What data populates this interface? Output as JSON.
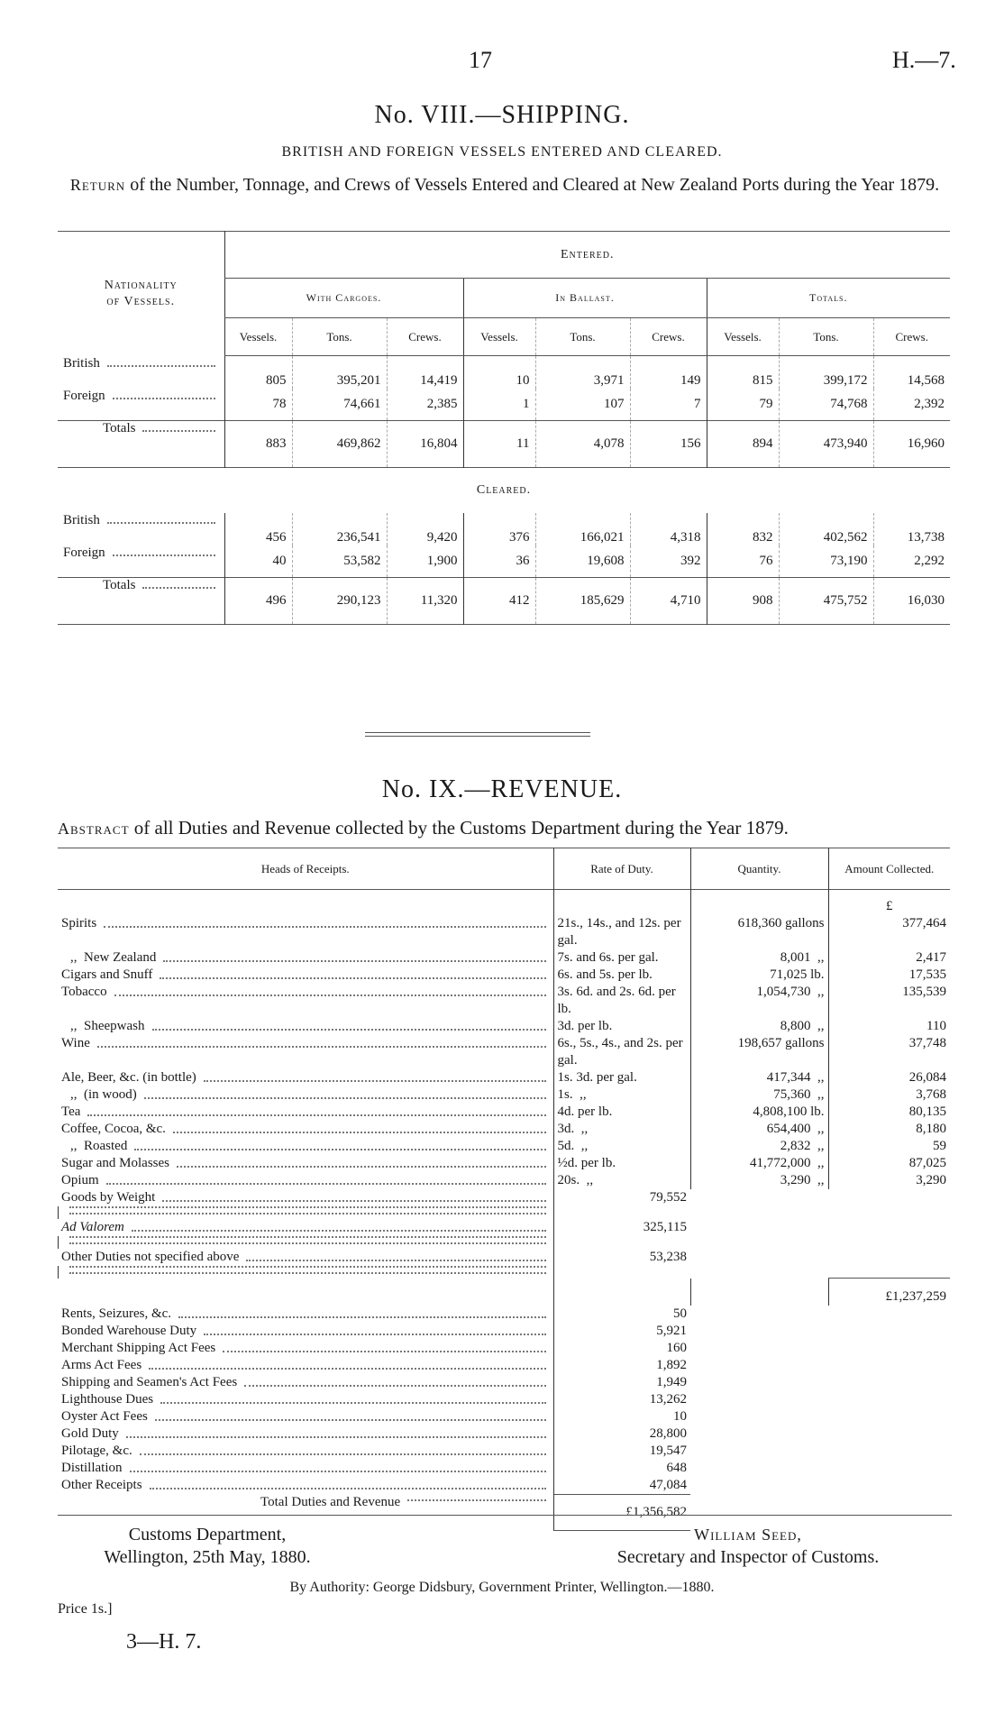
{
  "header": {
    "page": "17",
    "ref": "H.—7."
  },
  "shipping": {
    "title": "No. VIII.—SHIPPING.",
    "subtitle": "BRITISH AND FOREIGN VESSELS ENTERED AND CLEARED.",
    "caption_lead": "Return",
    "caption": "of the Number, Tonnage, and Crews of Vessels Entered and Cleared at New Zealand Ports during the Year 1879.",
    "columns": {
      "nationality": "Nationality of Vessels.",
      "groups": [
        "With Cargoes.",
        "In Ballast.",
        "Totals."
      ],
      "fields": [
        "Vessels.",
        "Tons.",
        "Crews."
      ]
    },
    "entered": {
      "label": "Entered.",
      "rows": [
        {
          "name": "British",
          "values": [
            "805",
            "395,201",
            "14,419",
            "10",
            "3,971",
            "149",
            "815",
            "399,172",
            "14,568"
          ]
        },
        {
          "name": "Foreign",
          "values": [
            "78",
            "74,661",
            "2,385",
            "1",
            "107",
            "7",
            "79",
            "74,768",
            "2,392"
          ]
        },
        {
          "name": "Totals",
          "values": [
            "883",
            "469,862",
            "16,804",
            "11",
            "4,078",
            "156",
            "894",
            "473,940",
            "16,960"
          ]
        }
      ]
    },
    "cleared": {
      "label": "Cleared.",
      "rows": [
        {
          "name": "British",
          "values": [
            "456",
            "236,541",
            "9,420",
            "376",
            "166,021",
            "4,318",
            "832",
            "402,562",
            "13,738"
          ]
        },
        {
          "name": "Foreign",
          "values": [
            "40",
            "53,582",
            "1,900",
            "36",
            "19,608",
            "392",
            "76",
            "73,190",
            "2,292"
          ]
        },
        {
          "name": "Totals",
          "values": [
            "496",
            "290,123",
            "11,320",
            "412",
            "185,629",
            "4,710",
            "908",
            "475,752",
            "16,030"
          ]
        }
      ]
    }
  },
  "revenue": {
    "title": "No. IX.—REVENUE.",
    "caption_lead": "Abstract",
    "caption": "of all Duties and Revenue collected by the Customs Department during the Year 1879.",
    "columns": [
      "Heads of Receipts.",
      "Rate of Duty.",
      "Quantity.",
      "Amount Collected."
    ],
    "currency": "£",
    "duties": [
      {
        "head": "Spirits",
        "rate": "21s., 14s., and 12s. per gal.",
        "quantity": "618,360 gallons",
        "amount": "377,464"
      },
      {
        "head": ",,  New Zealand",
        "rate": "7s. and 6s. per gal.",
        "quantity": "8,001  ,,",
        "amount": "2,417"
      },
      {
        "head": "Cigars and Snuff",
        "rate": "6s. and 5s. per lb.",
        "quantity": "71,025 lb.",
        "amount": "17,535"
      },
      {
        "head": "Tobacco",
        "rate": "3s. 6d. and 2s. 6d. per lb.",
        "quantity": "1,054,730  ,,",
        "amount": "135,539"
      },
      {
        "head": ",,  Sheepwash",
        "rate": "3d. per lb.",
        "quantity": "8,800  ,,",
        "amount": "110"
      },
      {
        "head": "Wine",
        "rate": "6s., 5s., 4s., and 2s. per gal.",
        "quantity": "198,657 gallons",
        "amount": "37,748"
      },
      {
        "head": "Ale, Beer, &c. (in bottle)",
        "rate": "1s. 3d. per gal.",
        "quantity": "417,344  ,,",
        "amount": "26,084"
      },
      {
        "head": ",,  (in wood)",
        "rate": "1s.  ,,",
        "quantity": "75,360  ,,",
        "amount": "3,768"
      },
      {
        "head": "Tea",
        "rate": "4d. per lb.",
        "quantity": "4,808,100 lb.",
        "amount": "80,135"
      },
      {
        "head": "Coffee, Cocoa, &c.",
        "rate": "3d.  ,,",
        "quantity": "654,400  ,,",
        "amount": "8,180"
      },
      {
        "head": ",,  Roasted",
        "rate": "5d.  ,,",
        "quantity": "2,832  ,,",
        "amount": "59"
      },
      {
        "head": "Sugar and Molasses",
        "rate": "½d. per lb.",
        "quantity": "41,772,000  ,,",
        "amount": "87,025"
      },
      {
        "head": "Opium",
        "rate": "20s.  ,,",
        "quantity": "3,290  ,,",
        "amount": "3,290"
      },
      {
        "head": "Goods by Weight",
        "amount": "79,552"
      },
      {
        "head": "Ad Valorem",
        "amount": "325,115"
      },
      {
        "head": "Other Duties not specified above",
        "amount": "53,238"
      }
    ],
    "subtotal": "£1,237,259",
    "other": [
      {
        "head": "Rents, Seizures, &c.",
        "amount": "50"
      },
      {
        "head": "Bonded Warehouse Duty",
        "amount": "5,921"
      },
      {
        "head": "Merchant Shipping Act Fees",
        "amount": "160"
      },
      {
        "head": "Arms Act Fees",
        "amount": "1,892"
      },
      {
        "head": "Shipping and Seamen's Act Fees",
        "amount": "1,949"
      },
      {
        "head": "Lighthouse Dues",
        "amount": "13,262"
      },
      {
        "head": "Oyster Act Fees",
        "amount": "10"
      },
      {
        "head": "Gold Duty",
        "amount": "28,800"
      },
      {
        "head": "Pilotage, &c.",
        "amount": "19,547"
      },
      {
        "head": "Distillation",
        "amount": "648"
      },
      {
        "head": "Other Receipts",
        "amount": "47,084"
      }
    ],
    "total_label": "Total Duties and Revenue",
    "total": "£1,356,582"
  },
  "footer": {
    "office": "Customs Department,",
    "place_date": "Wellington, 25th May, 1880.",
    "signatory": "William Seed,",
    "position": "Secretary and Inspector of Customs.",
    "authority": "By Authority: George Didsbury, Government Printer, Wellington.—1880.",
    "price": "Price 1s.]",
    "signature": "3—H. 7."
  }
}
